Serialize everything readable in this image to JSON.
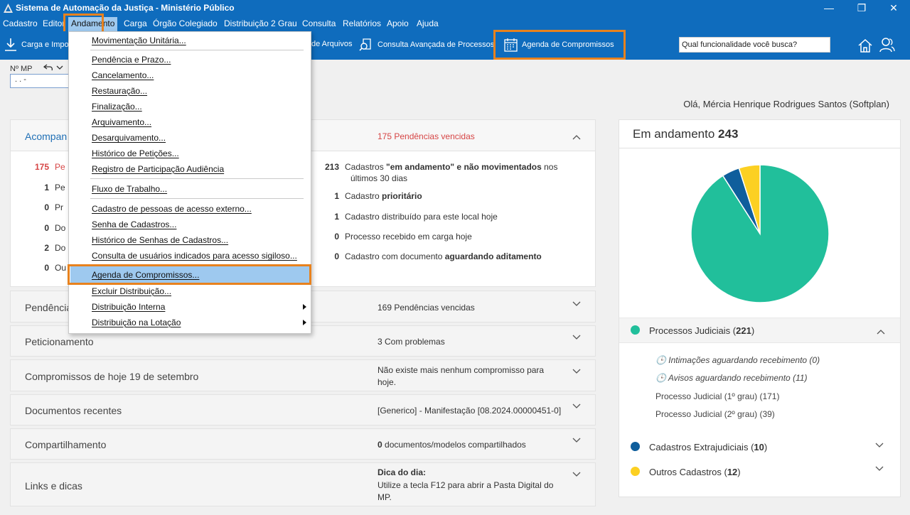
{
  "window": {
    "title": "Sistema de Automação da Justiça - Ministério Público",
    "minimize": "—",
    "restore": "❐",
    "close": "✕"
  },
  "menubar": {
    "items": [
      "Cadastro",
      "Editor",
      "Andamento",
      "Carga",
      "Órgão Colegiado",
      "Distribuição 2 Grau",
      "Consulta",
      "Relatórios",
      "Apoio",
      "Ajuda"
    ]
  },
  "toolbar": {
    "carga": "Carga e Importação",
    "arquivos": "de Arquivos",
    "consulta": "Consulta Avançada de Processos",
    "agenda": "Agenda de Compromissos",
    "search_value": "Qual funcionalidade você busca?"
  },
  "nmp": {
    "label": "Nº MP",
    "value": ".   .      -"
  },
  "greeting": "Olá, Mércia Henrique Rodrigues Santos (Softplan)",
  "dropdown": {
    "items": [
      "Movimentação Unitária...",
      "Pendência e Prazo...",
      "Cancelamento...",
      "Restauração...",
      "Finalização...",
      "Arquivamento...",
      "Desarquivamento...",
      "Histórico de Petições...",
      "Registro de Participação Audiência",
      "Fluxo de Trabalho...",
      "Cadastro de pessoas de acesso externo...",
      "Senha de Cadastros...",
      "Histórico de Senhas de Cadastros...",
      "Consulta de usuários indicados para acesso sigiloso...",
      "Agenda de Compromissos...",
      "Excluir Distribuição...",
      "Distribuição Interna",
      "Distribuição na Lotação"
    ]
  },
  "acompanhamento": {
    "title": "Acompan",
    "pendencias": "175 Pendências vencidas",
    "left": [
      {
        "num": "175",
        "text": "Pe"
      },
      {
        "num": "1",
        "text": "Pe"
      },
      {
        "num": "0",
        "text": "Pr"
      },
      {
        "num": "0",
        "text": "Do"
      },
      {
        "num": "2",
        "text": "Do"
      },
      {
        "num": "0",
        "text": "Ou"
      }
    ],
    "right": [
      {
        "num": "213",
        "pre": "Cadastros ",
        "bold": "\"em andamento\" e não movimentados",
        "post": " nos",
        "line2": "últimos 30 dias"
      },
      {
        "num": "1",
        "pre": "Cadastro ",
        "bold": "prioritário",
        "post": ""
      },
      {
        "num": "1",
        "pre": "Cadastro distribuído para este local hoje",
        "bold": "",
        "post": ""
      },
      {
        "num": "0",
        "pre": "Processo recebido em carga hoje",
        "bold": "",
        "post": ""
      },
      {
        "num": "0",
        "pre": "Cadastro com documento ",
        "bold": "aguardando aditamento",
        "post": ""
      }
    ]
  },
  "panels": {
    "pendencias": {
      "title": "Pendência",
      "right": "169 Pendências vencidas"
    },
    "peticionamento": {
      "title": "Peticionamento",
      "right": "3 Com problemas"
    },
    "compromissos": {
      "title": "Compromissos de hoje 19 de setembro",
      "right": "Não existe mais nenhum compromisso para hoje."
    },
    "documentos": {
      "title": "Documentos recentes",
      "right": "[Generico] - Manifestação [08.2024.00000451-0]"
    },
    "compartilhamento": {
      "title": "Compartilhamento",
      "right_bold": "0",
      "right": " documentos/modelos compartilhados"
    },
    "links": {
      "title": "Links e dicas",
      "right_bold": "Dica do dia:",
      "right": "Utilize a tecla F12 para abrir a Pasta Digital do MP."
    }
  },
  "em_andamento": {
    "label": "Em andamento",
    "total": "243",
    "colors": {
      "judiciais": "#21bf9b",
      "extrajudiciais": "#0f5e9c",
      "outros": "#fcd022"
    },
    "legend": [
      {
        "label": "Processos Judiciais",
        "count": "221"
      },
      {
        "label": "Cadastros Extrajudiciais",
        "count": "10"
      },
      {
        "label": "Outros Cadastros",
        "count": "12"
      }
    ],
    "sub": [
      "Intimações aguardando recebimento (0)",
      "Avisos aguardando recebimento (11)",
      "Processo Judicial (1º grau) (171)",
      "Processo Judicial (2º grau) (39)"
    ]
  },
  "chart_data": {
    "type": "pie",
    "categories": [
      "Processos Judiciais",
      "Cadastros Extrajudiciais",
      "Outros Cadastros"
    ],
    "values": [
      221,
      10,
      12
    ]
  }
}
